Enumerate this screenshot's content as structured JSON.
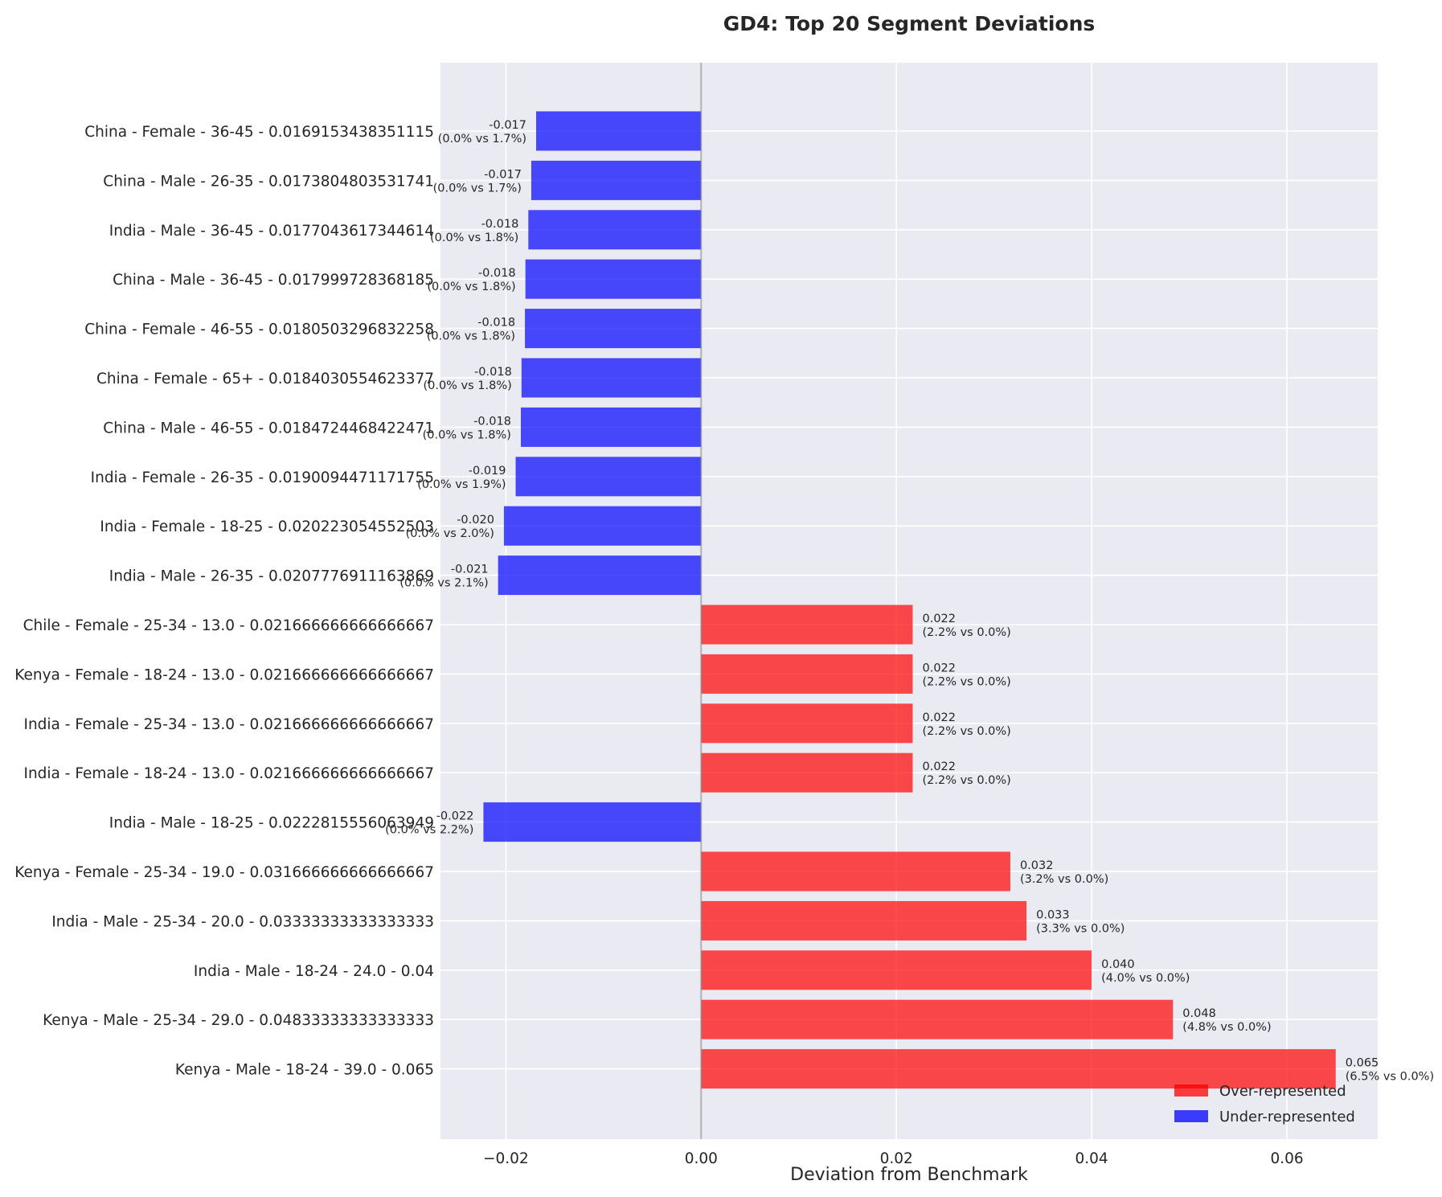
{
  "chart_data": {
    "type": "bar",
    "orientation": "horizontal",
    "title": "GD4: Top 20 Segment Deviations",
    "xlabel": "Deviation from Benchmark",
    "ylabel": "",
    "xlim": [
      -0.0267,
      0.0693
    ],
    "xticks": [
      -0.02,
      0.0,
      0.02,
      0.04,
      0.06
    ],
    "xtick_labels": [
      "−0.02",
      "0.00",
      "0.02",
      "0.04",
      "0.06"
    ],
    "grid": true,
    "zero_line": true,
    "legend": {
      "position": "bottom-right",
      "entries": [
        {
          "label": "Over-represented",
          "color": "#ff0000"
        },
        {
          "label": "Under-represented",
          "color": "#0000ff"
        }
      ]
    },
    "colors": {
      "over": "#ff0000",
      "under": "#0000ff",
      "background": "#eaeaf2",
      "grid": "#ffffff",
      "zero_line": "#808080"
    },
    "bars": [
      {
        "category": "China - Female - 36-45 - 0.0169153438351115",
        "value": -0.0169,
        "label": "-0.017",
        "sub_label": "(0.0% vs 1.7%)",
        "group": "under"
      },
      {
        "category": "China - Male - 26-35 - 0.0173804803531741",
        "value": -0.0174,
        "label": "-0.017",
        "sub_label": "(0.0% vs 1.7%)",
        "group": "under"
      },
      {
        "category": "India - Male - 36-45 - 0.0177043617344614",
        "value": -0.0177,
        "label": "-0.018",
        "sub_label": "(0.0% vs 1.8%)",
        "group": "under"
      },
      {
        "category": "China - Male - 36-45 - 0.017999728368185",
        "value": -0.018,
        "label": "-0.018",
        "sub_label": "(0.0% vs 1.8%)",
        "group": "under"
      },
      {
        "category": "China - Female - 46-55 - 0.0180503296832258",
        "value": -0.01805,
        "label": "-0.018",
        "sub_label": "(0.0% vs 1.8%)",
        "group": "under"
      },
      {
        "category": "China - Female - 65+ - 0.0184030554623377",
        "value": -0.0184,
        "label": "-0.018",
        "sub_label": "(0.0% vs 1.8%)",
        "group": "under"
      },
      {
        "category": "China - Male - 46-55 - 0.0184724468422471",
        "value": -0.01847,
        "label": "-0.018",
        "sub_label": "(0.0% vs 1.8%)",
        "group": "under"
      },
      {
        "category": "India - Female - 26-35 - 0.0190094471171755",
        "value": -0.019,
        "label": "-0.019",
        "sub_label": "(0.0% vs 1.9%)",
        "group": "under"
      },
      {
        "category": "India - Female - 18-25 - 0.020223054552503",
        "value": -0.0202,
        "label": "-0.020",
        "sub_label": "(0.0% vs 2.0%)",
        "group": "under"
      },
      {
        "category": "India - Male - 26-35 - 0.0207776911163869",
        "value": -0.0208,
        "label": "-0.021",
        "sub_label": "(0.0% vs 2.1%)",
        "group": "under"
      },
      {
        "category": "Chile - Female - 25-34 - 13.0 - 0.021666666666666667",
        "value": 0.02167,
        "label": "0.022",
        "sub_label": "(2.2% vs 0.0%)",
        "group": "over"
      },
      {
        "category": "Kenya - Female - 18-24 - 13.0 - 0.021666666666666667",
        "value": 0.02167,
        "label": "0.022",
        "sub_label": "(2.2% vs 0.0%)",
        "group": "over"
      },
      {
        "category": "India - Female - 25-34 - 13.0 - 0.021666666666666667",
        "value": 0.02167,
        "label": "0.022",
        "sub_label": "(2.2% vs 0.0%)",
        "group": "over"
      },
      {
        "category": "India - Female - 18-24 - 13.0 - 0.021666666666666667",
        "value": 0.02167,
        "label": "0.022",
        "sub_label": "(2.2% vs 0.0%)",
        "group": "over"
      },
      {
        "category": "India - Male - 18-25 - 0.0222815556063949",
        "value": -0.0223,
        "label": "-0.022",
        "sub_label": "(0.0% vs 2.2%)",
        "group": "under"
      },
      {
        "category": "Kenya - Female - 25-34 - 19.0 - 0.031666666666666667",
        "value": 0.03167,
        "label": "0.032",
        "sub_label": "(3.2% vs 0.0%)",
        "group": "over"
      },
      {
        "category": "India - Male - 25-34 - 20.0 - 0.03333333333333333",
        "value": 0.03333,
        "label": "0.033",
        "sub_label": "(3.3% vs 0.0%)",
        "group": "over"
      },
      {
        "category": "India - Male - 18-24 - 24.0 - 0.04",
        "value": 0.04,
        "label": "0.040",
        "sub_label": "(4.0% vs 0.0%)",
        "group": "over"
      },
      {
        "category": "Kenya - Male - 25-34 - 29.0 - 0.04833333333333333",
        "value": 0.04833,
        "label": "0.048",
        "sub_label": "(4.8% vs 0.0%)",
        "group": "over"
      },
      {
        "category": "Kenya - Male - 18-24 - 39.0 - 0.065",
        "value": 0.065,
        "label": "0.065",
        "sub_label": "(6.5% vs 0.0%)",
        "group": "over"
      }
    ]
  }
}
